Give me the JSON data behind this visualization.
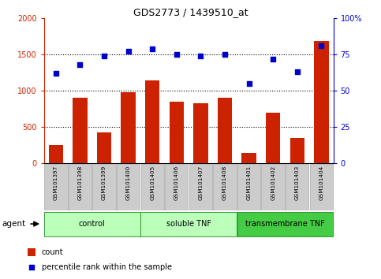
{
  "title": "GDS2773 / 1439510_at",
  "samples": [
    "GSM101397",
    "GSM101398",
    "GSM101399",
    "GSM101400",
    "GSM101405",
    "GSM101406",
    "GSM101407",
    "GSM101408",
    "GSM101401",
    "GSM101402",
    "GSM101403",
    "GSM101404"
  ],
  "counts": [
    250,
    900,
    420,
    980,
    1140,
    850,
    830,
    900,
    145,
    700,
    350,
    1680
  ],
  "percentiles": [
    62,
    68,
    74,
    77,
    79,
    75,
    74,
    75,
    55,
    72,
    63,
    81
  ],
  "groups": [
    {
      "label": "control",
      "start": 0,
      "end": 4,
      "color": "#aaffaa"
    },
    {
      "label": "soluble TNF",
      "start": 4,
      "end": 8,
      "color": "#aaffaa"
    },
    {
      "label": "transmembrane TNF",
      "start": 8,
      "end": 12,
      "color": "#44dd44"
    }
  ],
  "ylim_left": [
    0,
    2000
  ],
  "ylim_right": [
    0,
    100
  ],
  "yticks_left": [
    0,
    500,
    1000,
    1500,
    2000
  ],
  "yticks_right": [
    0,
    25,
    50,
    75,
    100
  ],
  "yticklabels_left": [
    "0",
    "500",
    "1000",
    "1500",
    "2000"
  ],
  "yticklabels_right": [
    "0",
    "25",
    "50",
    "75",
    "100%"
  ],
  "bar_color": "#cc2200",
  "scatter_color": "#0000cc",
  "legend_count_color": "#cc2200",
  "legend_percentile_color": "#0000cc",
  "agent_label": "agent",
  "left_axis_color": "#cc2200",
  "right_axis_color": "#0000cc",
  "grid_color": "black",
  "tick_bg_color": "#cccccc",
  "figsize": [
    4.83,
    3.54
  ],
  "dpi": 100
}
